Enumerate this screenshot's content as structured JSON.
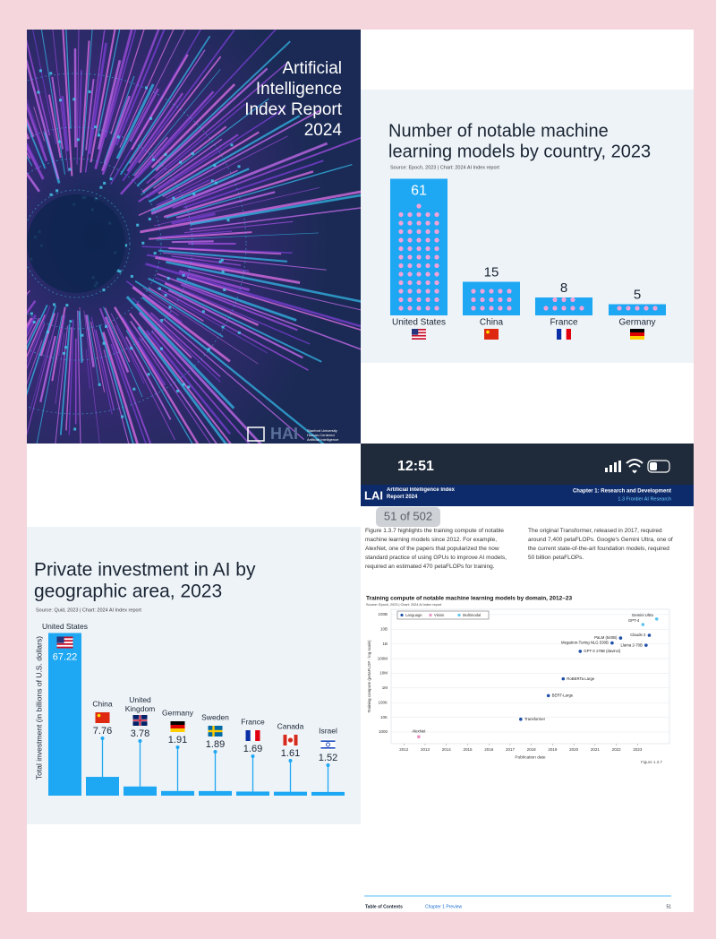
{
  "cover": {
    "title_lines": [
      "Artificial",
      "Intelligence",
      "Index Report",
      "2024"
    ],
    "logo": "HAI",
    "org": "Stanford University Human-Centered Artificial Intelligence"
  },
  "models_chart": {
    "type": "bar",
    "title_lines": [
      "Number of notable machine",
      "learning models by country, 2023"
    ],
    "source": "Source: Epoch, 2023 | Chart: 2024 AI Index report",
    "categories": [
      "United States",
      "China",
      "France",
      "Germany"
    ],
    "values": [
      61,
      15,
      8,
      5
    ],
    "color": "#1ea7f2"
  },
  "investment_chart": {
    "type": "bar",
    "title_lines": [
      "Private investment in AI by",
      "geographic area, 2023"
    ],
    "source": "Source: Quid, 2023 | Chart: 2024 AI Index report",
    "y_label": "Total investment (in billions of U.S. dollars)",
    "categories": [
      "United States",
      "China",
      "United Kingdom",
      "Germany",
      "Sweden",
      "France",
      "Canada",
      "Israel"
    ],
    "values": [
      67.22,
      7.76,
      3.78,
      1.91,
      1.89,
      1.69,
      1.61,
      1.52
    ],
    "color": "#1ea7f2"
  },
  "phone": {
    "time": "12:51",
    "page_counter": "51 of 502",
    "header_left": "Artificial Intelligence Index Report 2024",
    "header_right_1": "Chapter 1: Research and Development",
    "header_right_2": "1.3 Frontier AI Research",
    "para_left": "Figure 1.3.7 highlights the training compute of notable machine learning models since 2012. For example, AlexNet, one of the papers that popularized the now standard practice of using GPUs to improve AI models, required an estimated 470 petaFLOPs for training.",
    "para_right": "The original Transformer, released in 2017, required around 7,400 petaFLOPs. Google's Gemini Ultra, one of the current state-of-the-art foundation models, required 50 billion petaFLOPs.",
    "compute_chart": {
      "type": "scatter",
      "title": "Training compute of notable machine learning models by domain, 2012–23",
      "source": "Source: Epoch, 2023 | Chart: 2024 AI Index report",
      "x_label": "Publication date",
      "y_label": "Training compute (petaFLOP - log scale)",
      "figure": "Figure 1.3.7",
      "log_scale": true,
      "xlim": [
        2011.4,
        2024.5
      ],
      "xticks": [
        2012,
        2013,
        2014,
        2015,
        2016,
        2017,
        2018,
        2019,
        2020,
        2021,
        2022,
        2023
      ],
      "ylim": [
        160,
        230000000000
      ],
      "yticks": [
        1000,
        {
          "value": 10000,
          "label": "10K"
        },
        {
          "value": 100000,
          "label": "100K"
        },
        {
          "value": 1000000,
          "label": "1M"
        },
        {
          "value": 10000000,
          "label": "10M"
        },
        {
          "value": 100000000,
          "label": "100M"
        },
        {
          "value": 1000000000,
          "label": "1B"
        },
        {
          "value": 10000000000,
          "label": "10B"
        },
        {
          "value": 100000000000,
          "label": "100B"
        }
      ],
      "grid": true,
      "legend": "top-left",
      "series": [
        {
          "name": "Language",
          "color": "#1e4fa8",
          "x": [
            2017.5,
            2018.8,
            2019.5,
            2020.3,
            2021.8,
            2022.2,
            2023.55,
            2023.4
          ],
          "values": [
            7400,
            300000,
            4200000,
            314000000,
            1170000000,
            2530000000,
            3900000000,
            810000000
          ],
          "labels": [
            "Transformer",
            "BERT-Large",
            "RoBERTa Large",
            "GPT-3 175B (davinci)",
            "Megatron-Turing NLG 530B",
            "PaLM (540B)",
            "Claude 2",
            "Llama 2-70B"
          ]
        },
        {
          "name": "Vision",
          "color": "#e98fc2",
          "x": [
            2012.7
          ],
          "values": [
            470
          ],
          "labels": [
            "AlexNet"
          ]
        },
        {
          "name": "Multimodal",
          "color": "#5fc3f0",
          "x": [
            2023.25,
            2023.9
          ],
          "values": [
            21000000000,
            50000000000
          ],
          "labels": [
            "GPT-4",
            "Gemini Ultra"
          ]
        }
      ]
    },
    "footer": {
      "left": "Table of Contents",
      "middle": "Chapter 1 Preview",
      "page": "51"
    }
  }
}
